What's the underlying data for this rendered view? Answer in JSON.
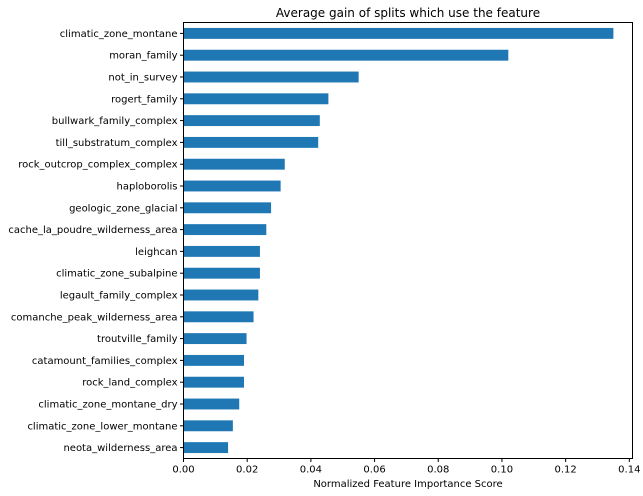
{
  "chart_data": {
    "type": "bar",
    "orientation": "horizontal",
    "title": "Average gain of splits which use the feature",
    "xlabel": "Normalized Feature Importance Score",
    "ylabel": "",
    "xlim": [
      0.0,
      0.141
    ],
    "xticks": [
      "0.00",
      "0.02",
      "0.04",
      "0.06",
      "0.08",
      "0.10",
      "0.12",
      "0.14"
    ],
    "bar_color": "#1f77b4",
    "grid": false,
    "categories": [
      "climatic_zone_montane",
      "moran_family",
      "not_in_survey",
      "rogert_family",
      "bullwark_family_complex",
      "till_substratum_complex",
      "rock_outcrop_complex_complex",
      "haploborolis",
      "geologic_zone_glacial",
      "cache_la_poudre_wilderness_area",
      "leighcan",
      "climatic_zone_subalpine",
      "legault_family_complex",
      "comanche_peak_wilderness_area",
      "troutville_family",
      "catamount_families_complex",
      "rock_land_complex",
      "climatic_zone_montane_dry",
      "climatic_zone_lower_montane",
      "neota_wilderness_area"
    ],
    "values": [
      0.135,
      0.102,
      0.055,
      0.0455,
      0.0428,
      0.0423,
      0.0318,
      0.0305,
      0.0275,
      0.026,
      0.024,
      0.024,
      0.0235,
      0.022,
      0.0198,
      0.019,
      0.019,
      0.0175,
      0.0155,
      0.014
    ]
  }
}
